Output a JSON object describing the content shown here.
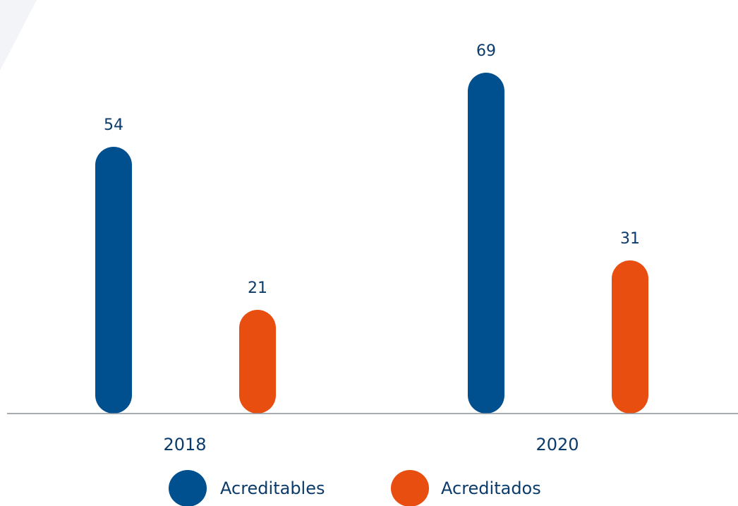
{
  "chart_data": {
    "type": "bar",
    "categories": [
      "2018",
      "2020"
    ],
    "series": [
      {
        "name": "Acreditables",
        "color": "#004f8f",
        "values": [
          54,
          69
        ]
      },
      {
        "name": "Acreditados",
        "color": "#e84e10",
        "values": [
          21,
          31
        ]
      }
    ],
    "ylim": [
      0,
      70
    ],
    "grid": false,
    "legend": "bottom-center",
    "data_labels": "top",
    "axis_color": "#8a8f99",
    "label_color": "#0b3b6b",
    "background_accent": "#f3f4f7"
  }
}
